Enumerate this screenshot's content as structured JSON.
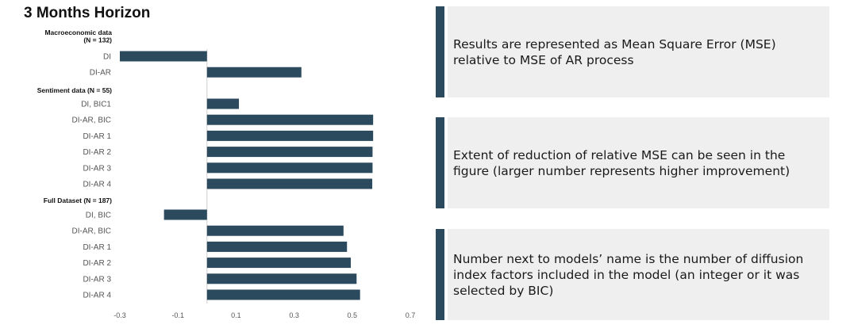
{
  "colors": {
    "bar": "#2b4a5e",
    "accent": "#2b4a5e",
    "note_bg": "#efefef"
  },
  "chart_data": {
    "type": "bar",
    "orientation": "horizontal",
    "title": "3 Months Horizon",
    "xlim": [
      -0.3,
      0.7
    ],
    "xticks": [
      "-0.3",
      "-0.1",
      "0.1",
      "0.3",
      "0.5",
      "0.7"
    ],
    "grid": false,
    "groups": [
      {
        "label": "Macroeconomic data\n(N = 132)",
        "categories": [
          "DI",
          "DI-AR"
        ],
        "values": [
          -0.3,
          0.325
        ]
      },
      {
        "label": "Sentiment data (N = 55)",
        "categories": [
          "DI, BIC1",
          "DI-AR, BIC",
          "DI-AR 1",
          "DI-AR 2",
          "DI-AR 3",
          "DI-AR 4"
        ],
        "values": [
          0.11,
          0.572,
          0.572,
          0.57,
          0.57,
          0.569
        ]
      },
      {
        "label": "Full Dataset (N = 187)",
        "categories": [
          "DI, BIC",
          "DI-AR, BIC",
          "DI-AR 1",
          "DI-AR 2",
          "DI-AR 3",
          "DI-AR 4"
        ],
        "values": [
          -0.148,
          0.47,
          0.482,
          0.495,
          0.515,
          0.527
        ]
      }
    ]
  },
  "notes": [
    "Results are represented as Mean Square Error (MSE) relative to MSE of AR process",
    "Extent of reduction of relative MSE can be seen in the figure (larger number represents higher improvement)",
    "Number next to models’ name is the number of diffusion index factors included in the model (an integer or it was selected by BIC)"
  ]
}
